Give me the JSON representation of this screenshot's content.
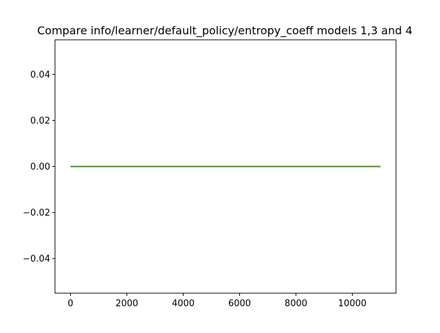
{
  "chart_data": {
    "type": "line",
    "title": "Compare info/learner/default_policy/entropy_coeff models 1,3 and 4",
    "xlabel": "",
    "ylabel": "",
    "xlim": [
      -550,
      11550
    ],
    "ylim": [
      -0.055,
      0.055
    ],
    "xticks": [
      0,
      2000,
      4000,
      6000,
      8000,
      10000
    ],
    "xtick_labels": [
      "0",
      "2000",
      "4000",
      "6000",
      "8000",
      "10000"
    ],
    "yticks": [
      -0.04,
      -0.02,
      0.0,
      0.02,
      0.04
    ],
    "ytick_labels": [
      "−0.04",
      "−0.02",
      "0.00",
      "0.02",
      "0.04"
    ],
    "grid": false,
    "legend": "none",
    "series": [
      {
        "color": "#1f77b4",
        "x": [
          0,
          11000
        ],
        "y": [
          0.0,
          0.0
        ]
      },
      {
        "color": "#ff7f0e",
        "x": [
          0,
          11000
        ],
        "y": [
          0.0,
          0.0
        ]
      },
      {
        "color": "#2ca02c",
        "x": [
          0,
          11000
        ],
        "y": [
          0.0,
          0.0
        ]
      },
      {
        "color": "#4a8a2a",
        "x": [
          0,
          11000
        ],
        "y": [
          0.0,
          0.0
        ]
      }
    ]
  }
}
